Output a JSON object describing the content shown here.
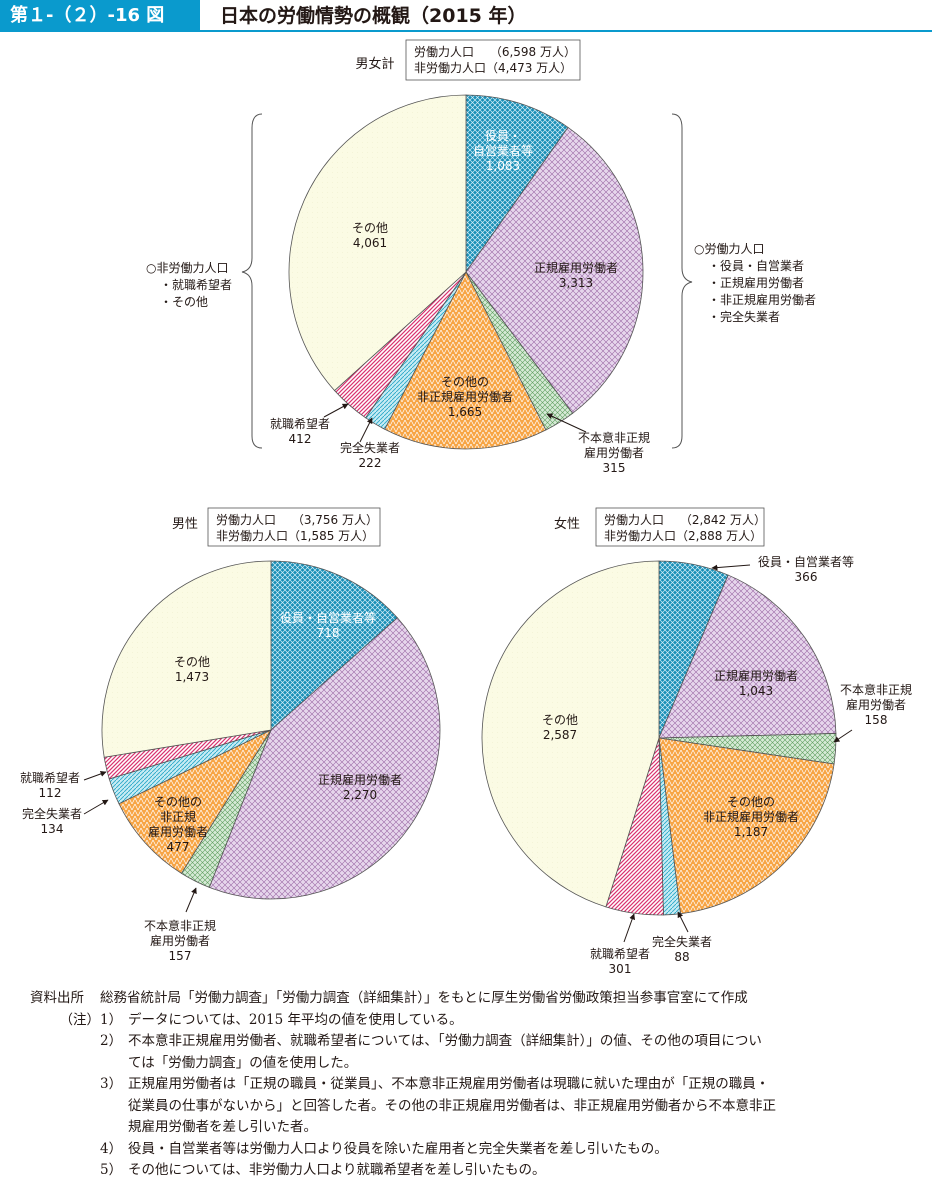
{
  "header": {
    "label": "第１-（２）-16 図",
    "title": "日本の労働情勢の概観（2015 年）"
  },
  "chart_data": [
    {
      "type": "pie",
      "group": "男女計",
      "legend_box": [
        "労働力人口　 （6,598 万人）",
        "非労働力人口（4,473 万人）"
      ],
      "slices": [
        {
          "label": "役員・自営業者等",
          "value": 1083,
          "display": "1,083",
          "style": "blue"
        },
        {
          "label": "正規雇用労働者",
          "value": 3313,
          "display": "3,313",
          "style": "purple"
        },
        {
          "label": "不本意非正規雇用労働者",
          "value": 315,
          "display": "315",
          "style": "green"
        },
        {
          "label": "その他の非正規雇用労働者",
          "value": 1665,
          "display": "1,665",
          "style": "orange"
        },
        {
          "label": "完全失業者",
          "value": 222,
          "display": "222",
          "style": "cyan"
        },
        {
          "label": "就職希望者",
          "value": 412,
          "display": "412",
          "style": "pink"
        },
        {
          "label": "その他",
          "value": 4061,
          "display": "4,061",
          "style": "cream"
        }
      ],
      "brace_left": [
        "○非労働力人口",
        "・就職希望者",
        "・その他"
      ],
      "brace_right": [
        "○労働力人口",
        "・役員・自営業者",
        "・正規雇用労働者",
        "・非正規雇用労働者",
        "・完全失業者"
      ]
    },
    {
      "type": "pie",
      "group": "男性",
      "legend_box": [
        "労働力人口　 （3,756 万人）",
        "非労働力人口（1,585 万人）"
      ],
      "slices": [
        {
          "label": "役員・自営業者等",
          "value": 718,
          "display": "718",
          "style": "blue"
        },
        {
          "label": "正規雇用労働者",
          "value": 2270,
          "display": "2,270",
          "style": "purple"
        },
        {
          "label": "不本意非正規雇用労働者",
          "value": 157,
          "display": "157",
          "style": "green"
        },
        {
          "label": "その他の非正規雇用労働者",
          "value": 477,
          "display": "477",
          "style": "orange"
        },
        {
          "label": "完全失業者",
          "value": 134,
          "display": "134",
          "style": "cyan"
        },
        {
          "label": "就職希望者",
          "value": 112,
          "display": "112",
          "style": "pink"
        },
        {
          "label": "その他",
          "value": 1473,
          "display": "1,473",
          "style": "cream"
        }
      ]
    },
    {
      "type": "pie",
      "group": "女性",
      "legend_box": [
        "労働力人口　 （2,842 万人）",
        "非労働力人口（2,888 万人）"
      ],
      "slices": [
        {
          "label": "役員・自営業者等",
          "value": 366,
          "display": "366",
          "style": "blue"
        },
        {
          "label": "正規雇用労働者",
          "value": 1043,
          "display": "1,043",
          "style": "purple"
        },
        {
          "label": "不本意非正規雇用労働者",
          "value": 158,
          "display": "158",
          "style": "green"
        },
        {
          "label": "その他の非正規雇用労働者",
          "value": 1187,
          "display": "1,187",
          "style": "orange"
        },
        {
          "label": "完全失業者",
          "value": 88,
          "display": "88",
          "style": "cyan"
        },
        {
          "label": "就職希望者",
          "value": 301,
          "display": "301",
          "style": "pink"
        },
        {
          "label": "その他",
          "value": 2587,
          "display": "2,587",
          "style": "cream"
        }
      ]
    }
  ],
  "colors": {
    "header": "#0a9acd",
    "blue": "#1a8fb6",
    "purple": "#e6d6ec",
    "green": "#d6ead6",
    "orange": "#f7a545",
    "cyan": "#c8ecf4",
    "pink": "#e04f8c",
    "cream": "#fbfbe4"
  },
  "notes": {
    "source_label": "資料出所",
    "source_text": "総務省統計局「労働力調査」「労働力調査（詳細集計）」をもとに厚生労働省労働政策担当参事官室にて作成",
    "note_label": "（注）",
    "items": [
      {
        "num": "1）",
        "lines": [
          "データについては、2015 年平均の値を使用している。"
        ]
      },
      {
        "num": "2）",
        "lines": [
          "不本意非正規雇用労働者、就職希望者については、「労働力調査（詳細集計）」の値、その他の項目につい",
          "ては「労働力調査」の値を使用した。"
        ]
      },
      {
        "num": "3）",
        "lines": [
          "正規雇用労働者は「正規の職員・従業員」、不本意非正規雇用労働者は現職に就いた理由が「正規の職員・",
          "従業員の仕事がないから」と回答した者。その他の非正規雇用労働者は、非正規雇用労働者から不本意非正",
          "規雇用労働者を差し引いた者。"
        ]
      },
      {
        "num": "4）",
        "lines": [
          "役員・自営業者等は労働力人口より役員を除いた雇用者と完全失業者を差し引いたもの。"
        ]
      },
      {
        "num": "5）",
        "lines": [
          "その他については、非労働力人口より就職希望者を差し引いたもの。"
        ]
      }
    ]
  }
}
